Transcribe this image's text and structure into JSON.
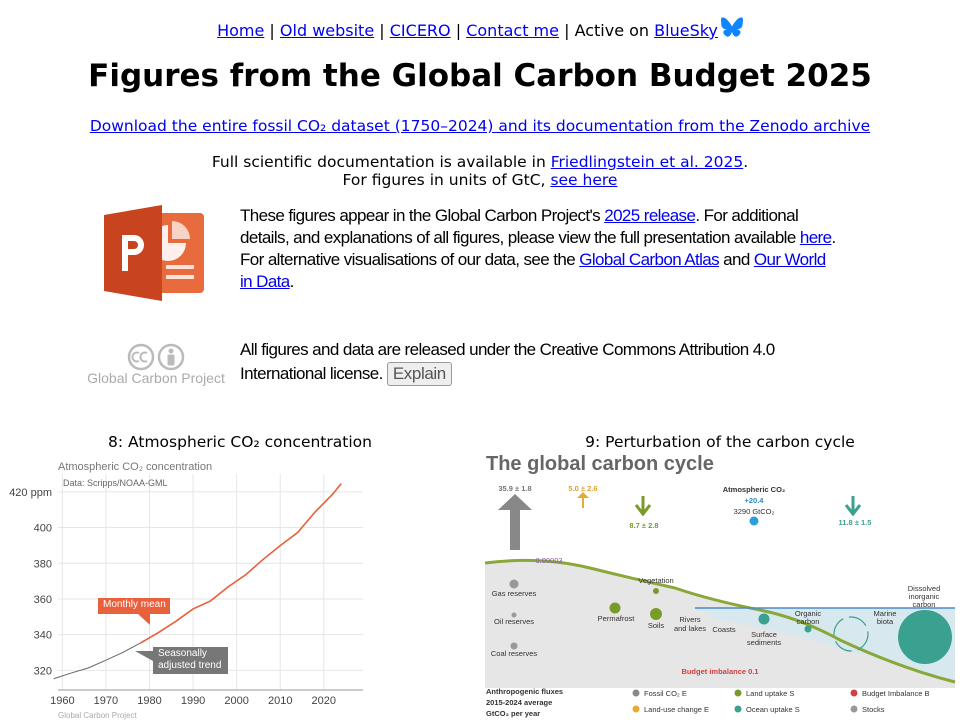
{
  "nav": {
    "links": [
      "Home",
      "Old website",
      "CICERO",
      "Contact me"
    ],
    "separator": "|",
    "active_text": "Active on",
    "bluesky": "BlueSky"
  },
  "title": "Figures from the Global Carbon Budget 2025",
  "download": "Download the entire fossil CO₂ dataset (1750–2024) and its documentation from the Zenodo archive",
  "docs": {
    "text": "Full scientific documentation is available in",
    "link": "Friedlingstein et al. 2025",
    "end": ".",
    "gtc_text": "For figures in units of GtC,",
    "gtc_link": "see here"
  },
  "intro": [
    {
      "text": "These figures appear in the Global Carbon Project's "
    },
    {
      "link": "2025 release"
    },
    {
      "text": ". For additional details, and explanations of all figures, please view the full presentation available "
    },
    {
      "link": "here"
    },
    {
      "text": ". For alternative visualisations of our data, see the "
    },
    {
      "link": "Global Carbon Atlas"
    },
    {
      "text": " and "
    },
    {
      "link": "Our World in Data"
    },
    {
      "text": "."
    }
  ],
  "license": {
    "text": "All figures and data are released under the Creative Commons Attribution 4.0 International license.",
    "button": "Explain",
    "logo_text": "Global Carbon Project"
  },
  "captions": [
    "8: Atmospheric CO₂ concentration",
    "9: Perturbation of the carbon cycle"
  ],
  "chart_data": {
    "type": "line",
    "title": "Atmospheric CO₂ concentration",
    "subtitle": "Data: Scripps/NOAA-GML",
    "credit": "Global Carbon Project",
    "x": [
      1958,
      1962,
      1966,
      1970,
      1974,
      1978,
      1982,
      1986,
      1990,
      1994,
      1998,
      2002,
      2006,
      2010,
      2014,
      2018,
      2022,
      2024
    ],
    "xlim": [
      1959,
      2029
    ],
    "xticks": [
      1960,
      1970,
      1980,
      1990,
      2000,
      2010,
      2020
    ],
    "ylim": [
      309,
      430
    ],
    "yticks": [
      320,
      340,
      360,
      380,
      400,
      {
        "value": 420,
        "label": "420 ppm"
      }
    ],
    "grid": true,
    "series": [
      {
        "name": "Seasonally adjusted trend",
        "color": "#666666",
        "values": [
          315.3,
          318.5,
          321.4,
          325.7,
          330.2,
          335.4,
          341.1,
          347.4,
          354.4,
          358.9,
          366.7,
          373.4,
          382.0,
          389.9,
          397.2,
          408.7,
          418.6,
          424.6
        ]
      },
      {
        "name": "Monthly mean",
        "color": "#e8603c",
        "values": [
          null,
          null,
          null,
          null,
          null,
          335.4,
          341.1,
          347.4,
          354.4,
          358.9,
          366.7,
          373.4,
          382.0,
          389.9,
          397.2,
          408.7,
          418.6,
          424.6
        ]
      }
    ]
  },
  "diagram": {
    "title": "The global carbon cycle",
    "labels": [
      "35.9 ± 1.8",
      "5.0 ± 2.6",
      "8.7 ± 2.8",
      "Atmospheric CO₂",
      "+20.4",
      "3290 GtCO₂",
      "11.8 ± 1.5",
      "0.00003",
      "Gas reserves",
      "Oil reserves",
      "Coal reserves",
      "Permafrost",
      "Vegetation",
      "Soils",
      "Rivers",
      "and lakes",
      "Coasts",
      "Surface",
      "sediments",
      "Organic",
      "carbon",
      "Marine",
      "biota",
      "Dissolved",
      "inorganic",
      "carbon",
      "Budget imbalance 0.1",
      "Anthropogenic fluxes",
      "2015-2024 average",
      "GtCO₂ per year",
      "Fossil CO₂ E",
      "Land-use change E",
      "Land uptake S",
      "Ocean uptake S",
      "Budget Imbalance B",
      "Stocks"
    ]
  }
}
